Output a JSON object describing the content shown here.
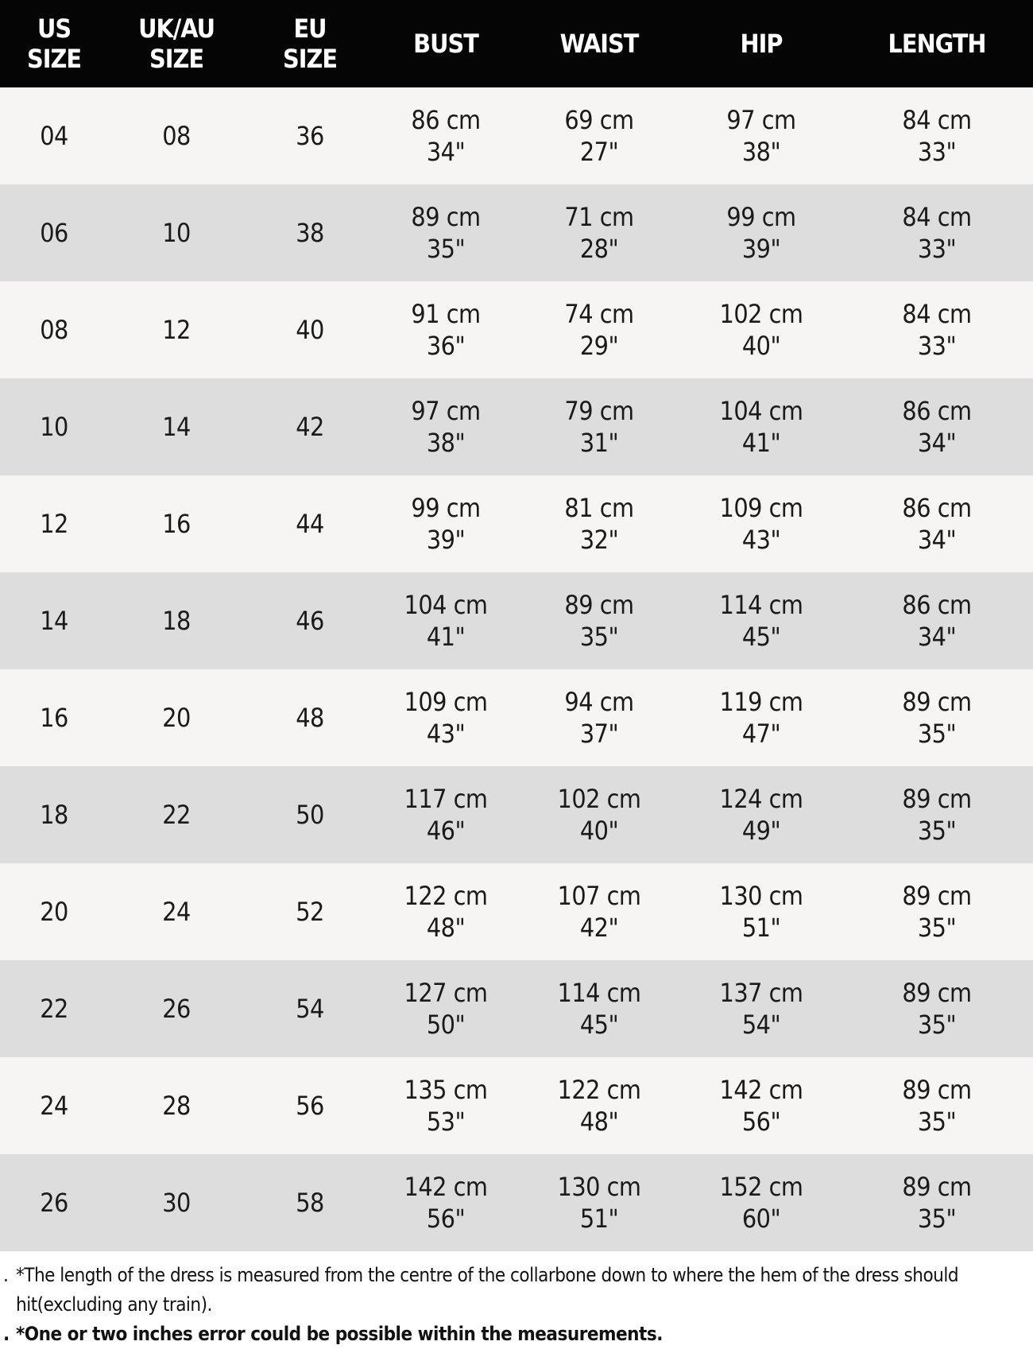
{
  "headers": [
    [
      "US",
      "SIZE"
    ],
    [
      "UK/AU",
      "SIZE"
    ],
    [
      "EU",
      "SIZE"
    ],
    [
      "BUST",
      ""
    ],
    [
      "WAIST",
      ""
    ],
    [
      "HIP",
      ""
    ],
    [
      "LENGTH",
      ""
    ]
  ],
  "rows": [
    [
      "04",
      "08",
      "36",
      "86 cm",
      "34\"",
      "69 cm",
      "27\"",
      "97 cm",
      "38\"",
      "84 cm",
      "33\""
    ],
    [
      "06",
      "10",
      "38",
      "89 cm",
      "35\"",
      "71 cm",
      "28\"",
      "99 cm",
      "39\"",
      "84 cm",
      "33\""
    ],
    [
      "08",
      "12",
      "40",
      "91 cm",
      "36\"",
      "74 cm",
      "29\"",
      "102 cm",
      "40\"",
      "84 cm",
      "33\""
    ],
    [
      "10",
      "14",
      "42",
      "97 cm",
      "38\"",
      "79 cm",
      "31\"",
      "104 cm",
      "41\"",
      "86 cm",
      "34\""
    ],
    [
      "12",
      "16",
      "44",
      "99 cm",
      "39\"",
      "81 cm",
      "32\"",
      "109 cm",
      "43\"",
      "86 cm",
      "34\""
    ],
    [
      "14",
      "18",
      "46",
      "104 cm",
      "41\"",
      "89 cm",
      "35\"",
      "114 cm",
      "45\"",
      "86 cm",
      "34\""
    ],
    [
      "16",
      "20",
      "48",
      "109 cm",
      "43\"",
      "94 cm",
      "37\"",
      "119 cm",
      "47\"",
      "89 cm",
      "35\""
    ],
    [
      "18",
      "22",
      "50",
      "117 cm",
      "46\"",
      "102 cm",
      "40\"",
      "124 cm",
      "49\"",
      "89 cm",
      "35\""
    ],
    [
      "20",
      "24",
      "52",
      "122 cm",
      "48\"",
      "107 cm",
      "42\"",
      "130 cm",
      "51\"",
      "89 cm",
      "35\""
    ],
    [
      "22",
      "26",
      "54",
      "127 cm",
      "50\"",
      "114 cm",
      "45\"",
      "137 cm",
      "54\"",
      "89 cm",
      "35\""
    ],
    [
      "24",
      "28",
      "56",
      "135 cm",
      "53\"",
      "122 cm",
      "48\"",
      "142 cm",
      "56\"",
      "89 cm",
      "35\""
    ],
    [
      "26",
      "30",
      "58",
      "142 cm",
      "56\"",
      "130 cm",
      "51\"",
      "152 cm",
      "60\"",
      "89 cm",
      "35\""
    ]
  ],
  "notes": {
    "bullet": ".",
    "length_note": "*The length of the dress is measured from the centre of the collarbone down to where the hem of the dress should hit(excluding any train).",
    "error_note": "*One or two inches error could be possible within the measurements."
  },
  "colors": {
    "header_bg": "#050505",
    "row_light": "#f6f5f3",
    "row_dark": "#dcdddc"
  }
}
